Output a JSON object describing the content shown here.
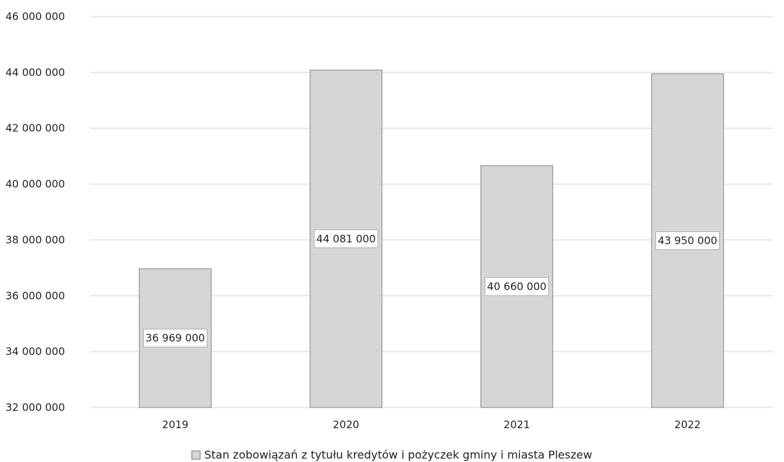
{
  "chart_data": {
    "type": "bar",
    "categories": [
      "2019",
      "2020",
      "2021",
      "2022"
    ],
    "values": [
      36969000,
      44081000,
      40660000,
      43950000
    ],
    "data_labels": [
      "36 969 000",
      "44 081 000",
      "40 660 000",
      "43 950 000"
    ],
    "ylim": [
      32000000,
      46000000
    ],
    "yticks": [
      32000000,
      34000000,
      36000000,
      38000000,
      40000000,
      42000000,
      44000000,
      46000000
    ],
    "ytick_labels": [
      "32 000 000",
      "34 000 000",
      "36 000 000",
      "38 000 000",
      "40 000 000",
      "42 000 000",
      "44 000 000",
      "46 000 000"
    ],
    "grid": true,
    "legend_position": "bottom",
    "series": [
      {
        "name": "Stan zobowiązań z tytułu kredytów i pożyczek gminy i miasta Pleszew",
        "color": "#d6d6d6"
      }
    ],
    "bar_edge_color": "#9a9a9a",
    "gridline_color": "#d4d4d4"
  }
}
